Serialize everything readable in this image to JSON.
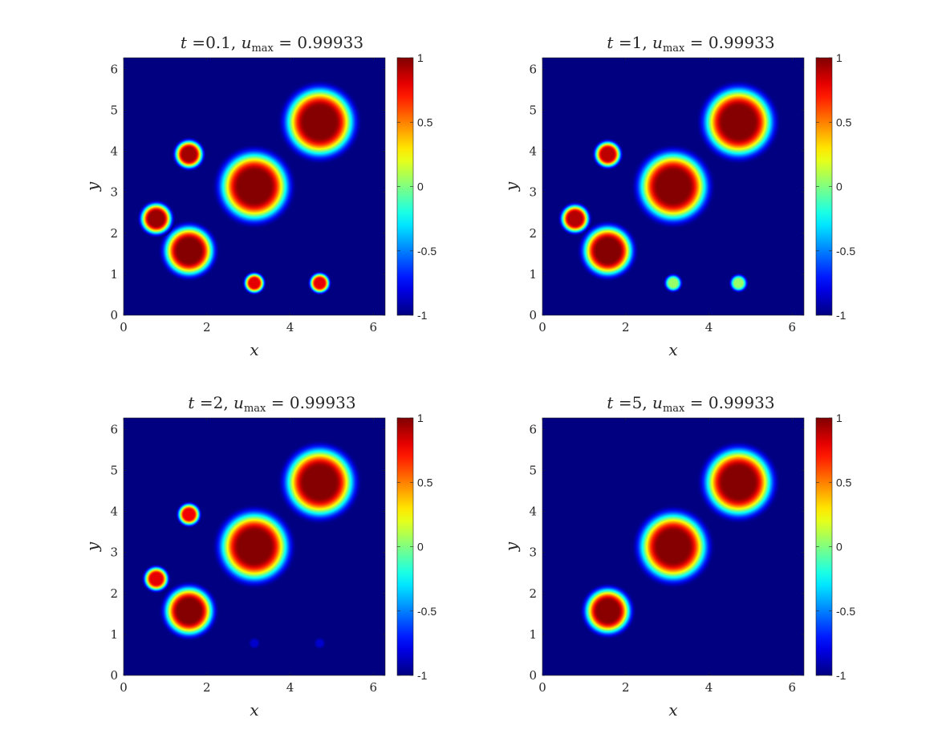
{
  "chart_data": [
    {
      "type": "heatmap",
      "title_prefix": "t =",
      "t": "0.1",
      "title_mid": ", u",
      "title_sub": "max",
      "title_eq": " = ",
      "umax": "0.99933",
      "xlabel": "x",
      "ylabel": "y",
      "xlim": [
        0,
        6.2832
      ],
      "ylim": [
        0,
        6.2832
      ],
      "xticks": [
        "0",
        "2",
        "4",
        "6"
      ],
      "yticks": [
        "0",
        "1",
        "2",
        "3",
        "4",
        "5",
        "6"
      ],
      "colorbar": {
        "range": [
          -1,
          1
        ],
        "ticks": [
          "-1",
          "-0.5",
          "0",
          "0.5",
          "1"
        ],
        "colormap": "jet"
      },
      "background_value": -1,
      "blobs": [
        {
          "x": 1.571,
          "y": 1.571,
          "r": 0.48,
          "peak": 0.99
        },
        {
          "x": 0.785,
          "y": 2.356,
          "r": 0.3,
          "peak": 0.95
        },
        {
          "x": 1.571,
          "y": 3.927,
          "r": 0.27,
          "peak": 0.93
        },
        {
          "x": 3.142,
          "y": 3.142,
          "r": 0.66,
          "peak": 0.99
        },
        {
          "x": 4.712,
          "y": 4.712,
          "r": 0.66,
          "peak": 0.99
        },
        {
          "x": 3.142,
          "y": 0.785,
          "r": 0.19,
          "peak": 0.8
        },
        {
          "x": 4.712,
          "y": 0.785,
          "r": 0.19,
          "peak": 0.8
        }
      ]
    },
    {
      "type": "heatmap",
      "title_prefix": "t =",
      "t": "1",
      "title_mid": ", u",
      "title_sub": "max",
      "title_eq": " = ",
      "umax": "0.99933",
      "xlabel": "x",
      "ylabel": "y",
      "xlim": [
        0,
        6.2832
      ],
      "ylim": [
        0,
        6.2832
      ],
      "xticks": [
        "0",
        "2",
        "4",
        "6"
      ],
      "yticks": [
        "0",
        "1",
        "2",
        "3",
        "4",
        "5",
        "6"
      ],
      "colorbar": {
        "range": [
          -1,
          1
        ],
        "ticks": [
          "-1",
          "-0.5",
          "0",
          "0.5",
          "1"
        ],
        "colormap": "jet"
      },
      "background_value": -1,
      "blobs": [
        {
          "x": 1.571,
          "y": 1.571,
          "r": 0.48,
          "peak": 0.99
        },
        {
          "x": 0.785,
          "y": 2.356,
          "r": 0.27,
          "peak": 0.9
        },
        {
          "x": 1.571,
          "y": 3.927,
          "r": 0.25,
          "peak": 0.88
        },
        {
          "x": 3.142,
          "y": 3.142,
          "r": 0.66,
          "peak": 0.99
        },
        {
          "x": 4.712,
          "y": 4.712,
          "r": 0.66,
          "peak": 0.99
        },
        {
          "x": 3.142,
          "y": 0.785,
          "r": 0.16,
          "peak": 0.05
        },
        {
          "x": 4.712,
          "y": 0.785,
          "r": 0.16,
          "peak": 0.05
        }
      ]
    },
    {
      "type": "heatmap",
      "title_prefix": "t =",
      "t": "2",
      "title_mid": ", u",
      "title_sub": "max",
      "title_eq": " = ",
      "umax": "0.99933",
      "xlabel": "x",
      "ylabel": "y",
      "xlim": [
        0,
        6.2832
      ],
      "ylim": [
        0,
        6.2832
      ],
      "xticks": [
        "0",
        "2",
        "4",
        "6"
      ],
      "yticks": [
        "0",
        "1",
        "2",
        "3",
        "4",
        "5",
        "6"
      ],
      "colorbar": {
        "range": [
          -1,
          1
        ],
        "ticks": [
          "-1",
          "-0.5",
          "0",
          "0.5",
          "1"
        ],
        "colormap": "jet"
      },
      "background_value": -1,
      "blobs": [
        {
          "x": 1.571,
          "y": 1.571,
          "r": 0.47,
          "peak": 0.99
        },
        {
          "x": 0.785,
          "y": 2.356,
          "r": 0.23,
          "peak": 0.8
        },
        {
          "x": 1.571,
          "y": 3.927,
          "r": 0.21,
          "peak": 0.78
        },
        {
          "x": 3.142,
          "y": 3.142,
          "r": 0.66,
          "peak": 0.99
        },
        {
          "x": 4.712,
          "y": 4.712,
          "r": 0.66,
          "peak": 0.99
        },
        {
          "x": 3.142,
          "y": 0.785,
          "r": 0.1,
          "peak": -0.85
        },
        {
          "x": 4.712,
          "y": 0.785,
          "r": 0.1,
          "peak": -0.85
        }
      ]
    },
    {
      "type": "heatmap",
      "title_prefix": "t =",
      "t": "5",
      "title_mid": ", u",
      "title_sub": "max",
      "title_eq": " = ",
      "umax": "0.99933",
      "xlabel": "x",
      "ylabel": "y",
      "xlim": [
        0,
        6.2832
      ],
      "ylim": [
        0,
        6.2832
      ],
      "xticks": [
        "0",
        "2",
        "4",
        "6"
      ],
      "yticks": [
        "0",
        "1",
        "2",
        "3",
        "4",
        "5",
        "6"
      ],
      "colorbar": {
        "range": [
          -1,
          1
        ],
        "ticks": [
          "-1",
          "-0.5",
          "0",
          "0.5",
          "1"
        ],
        "colormap": "jet"
      },
      "background_value": -1,
      "blobs": [
        {
          "x": 1.571,
          "y": 1.571,
          "r": 0.44,
          "peak": 0.98
        },
        {
          "x": 3.142,
          "y": 3.142,
          "r": 0.65,
          "peak": 0.99
        },
        {
          "x": 4.712,
          "y": 4.712,
          "r": 0.65,
          "peak": 0.99
        }
      ]
    }
  ]
}
